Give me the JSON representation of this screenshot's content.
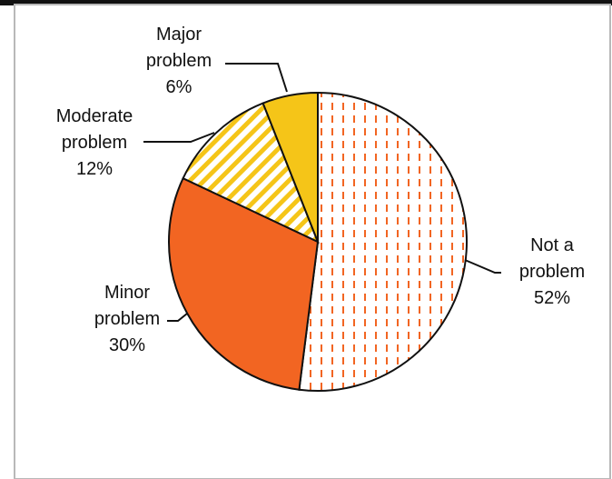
{
  "chart_data": {
    "type": "pie",
    "categories": [
      "Not a problem",
      "Minor problem",
      "Moderate problem",
      "Major problem"
    ],
    "values": [
      52,
      30,
      12,
      6
    ],
    "label_lines": [
      [
        "Not a",
        "problem",
        "52%"
      ],
      [
        "Minor",
        "problem",
        "30%"
      ],
      [
        "Moderate",
        "problem",
        "12%"
      ],
      [
        "Major",
        "problem",
        "6%"
      ]
    ],
    "colors": [
      "#f26522",
      "#f26522",
      "#f5c518",
      "#f5c518"
    ],
    "fill_styles": [
      "dashed-vertical",
      "solid",
      "diagonal-stripes",
      "solid"
    ],
    "start_angle_deg": 0,
    "direction": "clockwise",
    "legend": "none",
    "title": ""
  }
}
